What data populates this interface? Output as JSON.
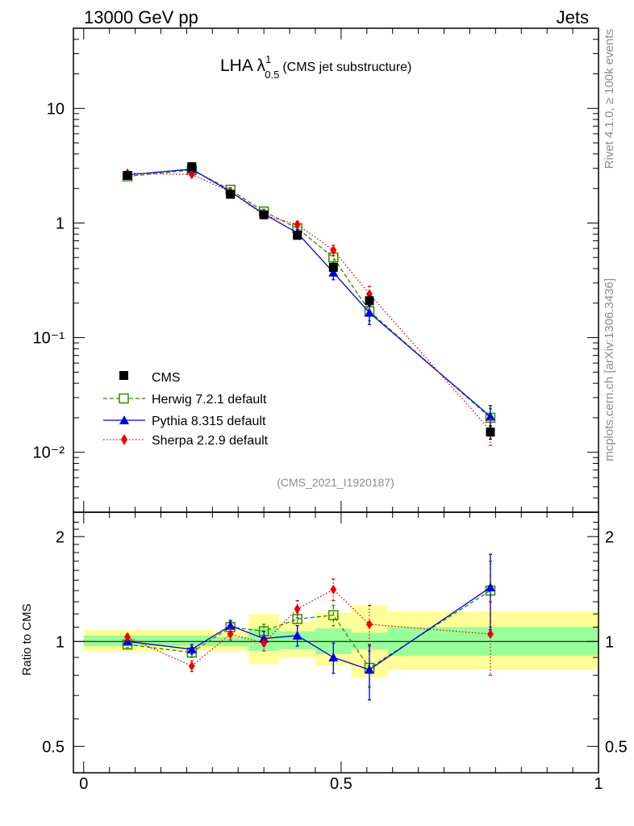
{
  "header": {
    "left": "13000 GeV pp",
    "right": "Jets"
  },
  "side_labels": {
    "rivet": "Rivet 4.1.0, ≥ 100k events",
    "mcplots": "mcplots.cern.ch [arXiv:1306.3436]"
  },
  "chart_data": [
    {
      "type": "scatter",
      "panel": "main",
      "title_main": "LHA λ",
      "title_sup": "1",
      "title_sub": "0.5",
      "title_suffix": "(CMS jet substructure)",
      "analysis_label": "(CMS_2021_I1920187)",
      "yscale": "log",
      "ylim": [
        0.003,
        50
      ],
      "xlim": [
        -0.02,
        1.0
      ],
      "ytick_labels": [
        "10",
        "1",
        "10⁻¹",
        "10⁻²"
      ],
      "ytick_values": [
        10,
        1,
        0.1,
        0.01
      ],
      "legend_position": "lower-left",
      "series": [
        {
          "name": "CMS",
          "color": "#000000",
          "marker": "filled-square",
          "line": "none",
          "x": [
            0.085,
            0.21,
            0.285,
            0.35,
            0.415,
            0.485,
            0.555,
            0.79
          ],
          "y": [
            2.6,
            3.1,
            1.78,
            1.18,
            0.78,
            0.41,
            0.21,
            0.015
          ],
          "err": [
            0.1,
            0.12,
            0.08,
            0.05,
            0.04,
            0.03,
            0.02,
            0.002
          ]
        },
        {
          "name": "Herwig 7.2.1 default",
          "color": "#2e8b00",
          "marker": "open-square",
          "line": "dashed",
          "x": [
            0.085,
            0.21,
            0.285,
            0.35,
            0.415,
            0.485,
            0.555,
            0.79
          ],
          "y": [
            2.55,
            2.9,
            1.95,
            1.26,
            0.9,
            0.5,
            0.17,
            0.02
          ],
          "err": [
            0.08,
            0.1,
            0.08,
            0.06,
            0.05,
            0.05,
            0.03,
            0.004
          ]
        },
        {
          "name": "Pythia 8.315 default",
          "color": "#0000dd",
          "marker": "filled-triangle",
          "line": "solid",
          "x": [
            0.085,
            0.21,
            0.285,
            0.35,
            0.415,
            0.485,
            0.555,
            0.79
          ],
          "y": [
            2.63,
            2.95,
            1.88,
            1.2,
            0.82,
            0.37,
            0.165,
            0.0205
          ],
          "err": [
            0.08,
            0.1,
            0.08,
            0.06,
            0.06,
            0.05,
            0.035,
            0.005
          ]
        },
        {
          "name": "Sherpa 2.2.9 default",
          "color": "#ee0000",
          "marker": "filled-diamond",
          "line": "dotted",
          "x": [
            0.085,
            0.21,
            0.285,
            0.35,
            0.415,
            0.485,
            0.555,
            0.79
          ],
          "y": [
            2.72,
            2.65,
            1.87,
            1.17,
            0.97,
            0.58,
            0.24,
            0.0155
          ],
          "err": [
            0.08,
            0.1,
            0.08,
            0.06,
            0.06,
            0.06,
            0.04,
            0.004
          ]
        }
      ]
    },
    {
      "type": "scatter",
      "panel": "ratio",
      "ylabel": "Ratio to CMS",
      "yscale": "log",
      "ylim": [
        0.42,
        2.35
      ],
      "xlim": [
        -0.02,
        1.0
      ],
      "ytick_labels": [
        "2",
        "1",
        "0.5"
      ],
      "ytick_values": [
        2,
        1,
        0.5
      ],
      "xtick_labels": [
        "0",
        "0.5",
        "1"
      ],
      "xtick_values": [
        0,
        0.5,
        1
      ],
      "reference_line": 1,
      "bands": {
        "x_edges": [
          0.0,
          0.25,
          0.32,
          0.38,
          0.45,
          0.52,
          0.59,
          1.0
        ],
        "stat_lo": [
          0.97,
          0.97,
          0.94,
          0.95,
          0.92,
          0.95,
          0.91
        ],
        "stat_hi": [
          1.04,
          1.03,
          1.09,
          1.07,
          1.09,
          1.06,
          1.1
        ],
        "tot_lo": [
          0.94,
          0.94,
          0.86,
          0.9,
          0.85,
          0.79,
          0.83
        ],
        "tot_hi": [
          1.08,
          1.07,
          1.2,
          1.14,
          1.21,
          1.27,
          1.22
        ],
        "stat_color": "#99ff99",
        "tot_color": "#ffff99"
      },
      "series": [
        {
          "name": "Herwig 7.2.1 default",
          "color": "#2e8b00",
          "marker": "open-square",
          "line": "dashed",
          "x": [
            0.085,
            0.21,
            0.285,
            0.35,
            0.415,
            0.485,
            0.555,
            0.79
          ],
          "y": [
            0.98,
            0.93,
            1.1,
            1.07,
            1.16,
            1.19,
            0.84,
            1.4
          ],
          "err": [
            0.02,
            0.03,
            0.04,
            0.05,
            0.05,
            0.08,
            0.1,
            0.3
          ]
        },
        {
          "name": "Pythia 8.315 default",
          "color": "#0000dd",
          "marker": "filled-triangle",
          "line": "solid",
          "x": [
            0.085,
            0.21,
            0.285,
            0.35,
            0.415,
            0.485,
            0.555,
            0.79
          ],
          "y": [
            1.0,
            0.95,
            1.11,
            1.02,
            1.04,
            0.9,
            0.83,
            1.43
          ],
          "err": [
            0.02,
            0.03,
            0.04,
            0.05,
            0.07,
            0.09,
            0.15,
            0.35
          ]
        },
        {
          "name": "Sherpa 2.2.9 default",
          "color": "#ee0000",
          "marker": "filled-diamond",
          "line": "dotted",
          "x": [
            0.085,
            0.21,
            0.285,
            0.35,
            0.415,
            0.485,
            0.555,
            0.79
          ],
          "y": [
            1.03,
            0.85,
            1.05,
            0.99,
            1.24,
            1.41,
            1.12,
            1.05
          ],
          "err": [
            0.02,
            0.03,
            0.04,
            0.05,
            0.07,
            0.1,
            0.15,
            0.25
          ]
        }
      ]
    }
  ]
}
